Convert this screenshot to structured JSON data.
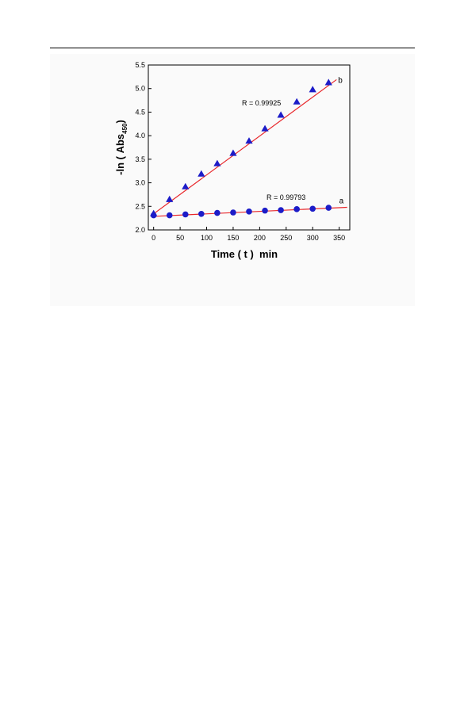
{
  "chart_data": {
    "type": "scatter",
    "xlabel": "Time ( t )  min",
    "ylabel_main": "-ln ( Abs",
    "ylabel_sub": "450",
    "ylabel_end": ")",
    "xlim": [
      -10,
      370
    ],
    "ylim": [
      2.0,
      5.5
    ],
    "x_ticks": [
      "0",
      "50",
      "100",
      "150",
      "200",
      "250",
      "300",
      "350"
    ],
    "x_tick_values": [
      0,
      50,
      100,
      150,
      200,
      250,
      300,
      350
    ],
    "y_ticks": [
      "2.0",
      "2.5",
      "3.0",
      "3.5",
      "4.0",
      "4.5",
      "5.0",
      "5.5"
    ],
    "y_tick_values": [
      2.0,
      2.5,
      3.0,
      3.5,
      4.0,
      4.5,
      5.0,
      5.5
    ],
    "series": [
      {
        "name": "a",
        "marker": "circle",
        "color": "#1c1cc8",
        "x": [
          0,
          30,
          60,
          90,
          120,
          150,
          180,
          210,
          240,
          270,
          300,
          330
        ],
        "y": [
          2.31,
          2.31,
          2.33,
          2.34,
          2.36,
          2.37,
          2.39,
          2.41,
          2.42,
          2.44,
          2.45,
          2.47
        ],
        "fit": {
          "x": [
            -5,
            365
          ],
          "y": [
            2.285,
            2.48
          ]
        },
        "r_label": "R = 0.99793"
      },
      {
        "name": "b",
        "marker": "triangle",
        "color": "#1c1cc8",
        "x": [
          0,
          30,
          60,
          90,
          120,
          150,
          180,
          210,
          240,
          270,
          300,
          330
        ],
        "y": [
          2.35,
          2.65,
          2.92,
          3.19,
          3.41,
          3.63,
          3.89,
          4.15,
          4.44,
          4.72,
          4.98,
          5.13
        ],
        "fit": {
          "x": [
            -5,
            345
          ],
          "y": [
            2.3,
            5.19
          ]
        },
        "r_label": "R = 0.99925"
      }
    ],
    "line_color": "#e8262a",
    "grid": false
  }
}
